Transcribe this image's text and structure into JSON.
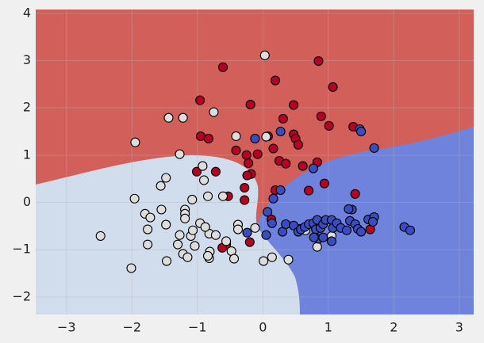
{
  "chart_data": {
    "type": "scatter",
    "xlim": [
      -3.47,
      3.22
    ],
    "ylim": [
      -2.37,
      4.08
    ],
    "xticks": [
      {
        "value": -3,
        "label": "−3"
      },
      {
        "value": -2,
        "label": "−2"
      },
      {
        "value": -1,
        "label": "−1"
      },
      0,
      1,
      2,
      3
    ],
    "yticks": [
      {
        "value": -2,
        "label": "−2"
      },
      {
        "value": -1,
        "label": "−1"
      },
      0,
      1,
      2,
      3,
      4
    ],
    "grid": true,
    "series": [
      {
        "color": "#b40426",
        "x": [
          -0.61,
          0.85,
          0.19,
          1.07,
          -0.96,
          -0.19,
          0.47,
          0.89,
          0.31,
          1.01,
          1.38,
          -0.95,
          -0.83,
          0.08,
          0.47,
          0.5,
          0.54,
          -0.41,
          0.16,
          -0.25,
          -0.08,
          0.25,
          0.35,
          0.83,
          0.61,
          -0.22,
          -0.18,
          -0.24,
          -1.01,
          -0.72,
          0.94,
          0.19,
          0.7,
          -0.28,
          1.41,
          -0.53,
          -0.28,
          0.13,
          -0.2,
          -0.56,
          -0.62,
          0.56,
          1.64
        ],
        "values": [
          2.86,
          2.99,
          2.58,
          2.44,
          2.16,
          2.07,
          2.06,
          1.82,
          1.77,
          1.62,
          1.6,
          1.4,
          1.35,
          1.4,
          1.44,
          1.35,
          1.22,
          1.1,
          1.14,
          1.0,
          1.02,
          0.88,
          0.82,
          0.85,
          0.77,
          0.83,
          0.6,
          0.57,
          0.65,
          0.65,
          0.4,
          0.26,
          0.25,
          0.31,
          0.18,
          0.13,
          0.05,
          -0.36,
          -0.84,
          -0.89,
          -0.96,
          -0.56,
          -0.57
        ]
      },
      {
        "color": "#dddddd",
        "x": [
          0.03,
          -0.75,
          -1.44,
          -1.22,
          -1.95,
          -0.41,
          -1.27,
          0.05,
          -0.92,
          -0.9,
          -1.48,
          -1.56,
          -0.84,
          -1.96,
          -0.61,
          -1.08,
          -1.19,
          -1.8,
          -1.72,
          -1.55,
          -1.19,
          -1.76,
          -1.48,
          -1.19,
          -0.96,
          -1.1,
          -1.27,
          -1.07,
          -0.82,
          -0.88,
          -0.72,
          -0.38,
          -0.38,
          -0.12,
          -0.56,
          -1.04,
          -1.3,
          -1.22,
          -0.81,
          -0.82,
          -0.48,
          -0.84,
          -1.47,
          -0.44,
          -1.15,
          -1.76,
          -2.48,
          -2.01,
          0.01,
          0.14,
          0.39,
          0.83,
          1.05,
          0.65
        ],
        "values": [
          3.11,
          1.91,
          1.79,
          1.79,
          1.27,
          1.4,
          1.02,
          1.39,
          0.77,
          0.47,
          0.52,
          0.35,
          0.13,
          0.08,
          0.13,
          0.06,
          -0.15,
          -0.24,
          -0.32,
          -0.15,
          -0.24,
          -0.57,
          -0.47,
          -0.34,
          -0.44,
          -0.71,
          -0.69,
          -0.59,
          -0.66,
          -0.52,
          -0.69,
          -0.47,
          -0.57,
          -0.54,
          -0.82,
          -0.92,
          -0.89,
          -1.09,
          -1.04,
          -1.18,
          -1.03,
          -1.13,
          -1.24,
          -1.19,
          -1.16,
          -0.89,
          -0.71,
          -1.39,
          -1.24,
          -1.16,
          -1.21,
          -0.94,
          -0.71,
          -0.59
        ]
      },
      {
        "color": "#3b4cc0",
        "x": [
          -0.12,
          0.27,
          1.48,
          1.5,
          1.7,
          0.77,
          0.27,
          0.07,
          0.16,
          0.05,
          0.14,
          0.3,
          0.35,
          0.47,
          0.54,
          0.58,
          0.64,
          0.7,
          0.77,
          0.81,
          0.83,
          0.88,
          0.92,
          0.96,
          1.05,
          1.07,
          1.13,
          1.19,
          1.28,
          1.33,
          1.36,
          1.31,
          1.41,
          1.45,
          1.5,
          1.61,
          1.7,
          1.68,
          2.16,
          2.25,
          0.85,
          0.92,
          1.05,
          0.78,
          -0.24
        ],
        "values": [
          1.35,
          1.5,
          1.55,
          1.5,
          1.15,
          0.72,
          0.26,
          -0.2,
          0.08,
          -0.69,
          -0.44,
          -0.62,
          -0.46,
          -0.49,
          -0.62,
          -0.57,
          -0.52,
          -0.46,
          -0.44,
          -0.57,
          -0.37,
          -0.54,
          -0.46,
          -0.37,
          -0.37,
          -0.54,
          -0.44,
          -0.54,
          -0.59,
          -0.39,
          -0.15,
          -0.14,
          -0.46,
          -0.56,
          -0.62,
          -0.36,
          -0.31,
          -0.41,
          -0.52,
          -0.59,
          -0.77,
          -0.74,
          -0.82,
          -0.74,
          -0.64
        ]
      }
    ]
  }
}
